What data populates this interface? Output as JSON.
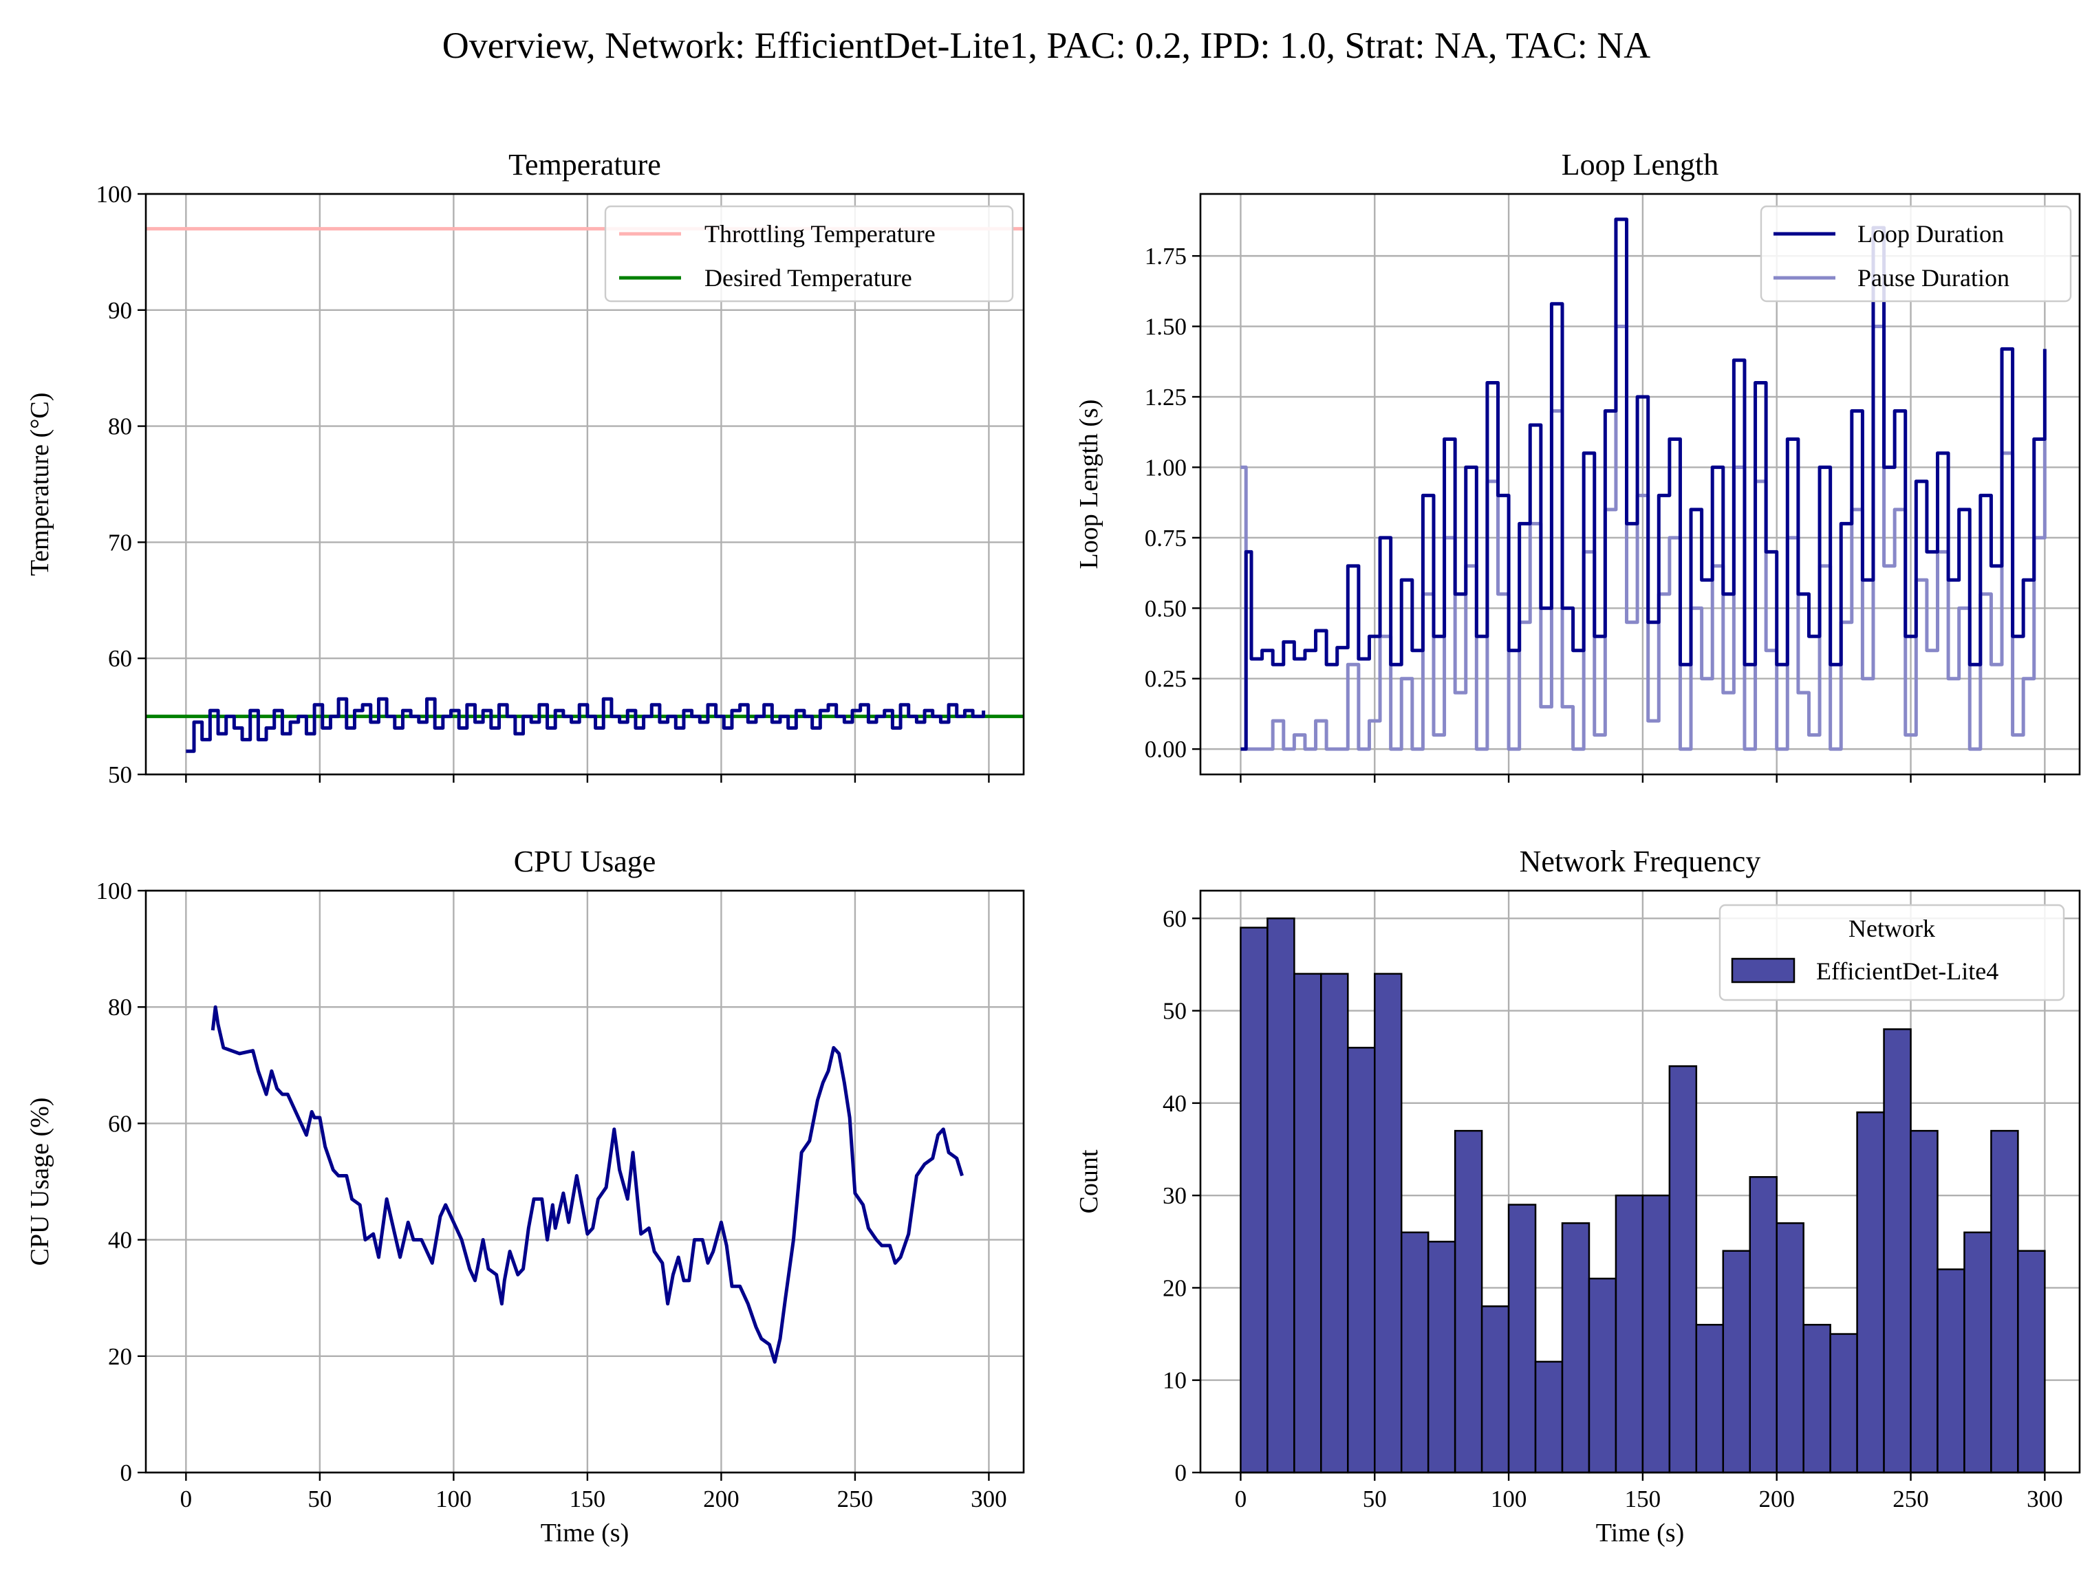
{
  "figure": {
    "suptitle": "Overview, Network: EfficientDet-Lite1, PAC: 0.2, IPD: 1.0, Strat: NA, TAC: NA"
  },
  "chart_data": [
    {
      "id": "temperature",
      "type": "line",
      "title": "Temperature",
      "xlabel": "",
      "ylabel": "Temperature (°C)",
      "xlim": [
        -15,
        313
      ],
      "ylim": [
        50,
        100
      ],
      "xticks": [
        0,
        50,
        100,
        150,
        200,
        250,
        300
      ],
      "yticks": [
        50,
        60,
        70,
        80,
        90,
        100
      ],
      "grid": true,
      "legend_position": "top-right",
      "hlines": [
        {
          "name": "Throttling Temperature",
          "y": 97,
          "color": "#ffb3b3"
        },
        {
          "name": "Desired Temperature",
          "y": 55,
          "color": "#008000"
        }
      ],
      "series": [
        {
          "color": "#00008b",
          "x": [
            0,
            3,
            6,
            9,
            12,
            15,
            18,
            21,
            24,
            27,
            30,
            33,
            36,
            39,
            42,
            45,
            48,
            51,
            54,
            57,
            60,
            63,
            66,
            69,
            72,
            75,
            78,
            81,
            84,
            87,
            90,
            93,
            96,
            99,
            102,
            105,
            108,
            111,
            114,
            117,
            120,
            123,
            126,
            129,
            132,
            135,
            138,
            141,
            144,
            147,
            150,
            153,
            156,
            159,
            162,
            165,
            168,
            171,
            174,
            177,
            180,
            183,
            186,
            189,
            192,
            195,
            198,
            201,
            204,
            207,
            210,
            213,
            216,
            219,
            222,
            225,
            228,
            231,
            234,
            237,
            240,
            243,
            246,
            249,
            252,
            255,
            258,
            261,
            264,
            267,
            270,
            273,
            276,
            279,
            282,
            285,
            288,
            291,
            294,
            298
          ],
          "y": [
            52,
            54.5,
            53,
            55.5,
            53.5,
            55,
            54,
            53,
            55.5,
            53,
            54,
            55.5,
            53.5,
            54.5,
            55,
            53.5,
            56,
            54,
            55,
            56.5,
            54,
            55.5,
            56,
            54.5,
            56.5,
            55,
            54,
            55.5,
            55,
            54.5,
            56.5,
            54,
            55,
            55.5,
            54,
            56,
            54.5,
            55.5,
            54,
            56,
            55,
            53.5,
            55,
            54.5,
            56,
            54,
            55.5,
            55,
            54.5,
            56,
            55,
            54,
            56.5,
            55,
            54.5,
            55.5,
            54,
            55,
            56,
            54.5,
            55,
            54,
            55.5,
            55,
            54.5,
            56,
            55,
            54,
            55.5,
            56,
            54.5,
            55,
            56,
            54.5,
            55,
            54,
            55.5,
            55,
            54,
            55.5,
            56,
            55,
            54.5,
            55.5,
            56,
            54.5,
            55,
            55.5,
            54,
            56,
            55,
            54.5,
            55.5,
            55,
            54.5,
            56,
            55,
            55.5,
            55,
            55.5
          ]
        }
      ]
    },
    {
      "id": "loop-length",
      "type": "line",
      "title": "Loop Length",
      "xlabel": "",
      "ylabel": "Loop Length (s)",
      "xlim": [
        -15,
        313
      ],
      "ylim": [
        -0.09,
        1.97
      ],
      "xticks": [
        0,
        50,
        100,
        150,
        200,
        250,
        300
      ],
      "yticks": [
        0.0,
        0.25,
        0.5,
        0.75,
        1.0,
        1.25,
        1.5,
        1.75
      ],
      "grid": true,
      "legend_position": "top-right",
      "series": [
        {
          "name": "Loop Duration",
          "color": "#00008b",
          "x": [
            0,
            2,
            4,
            8,
            12,
            16,
            20,
            24,
            28,
            32,
            36,
            40,
            44,
            48,
            52,
            56,
            60,
            64,
            68,
            72,
            76,
            80,
            84,
            88,
            92,
            96,
            100,
            104,
            108,
            112,
            116,
            120,
            124,
            128,
            132,
            136,
            140,
            144,
            148,
            152,
            156,
            160,
            164,
            168,
            172,
            176,
            180,
            184,
            188,
            192,
            196,
            200,
            204,
            208,
            212,
            216,
            220,
            224,
            228,
            232,
            236,
            240,
            244,
            248,
            252,
            256,
            260,
            264,
            268,
            272,
            276,
            280,
            284,
            288,
            292,
            296,
            300
          ],
          "y": [
            0,
            0.7,
            0.32,
            0.35,
            0.3,
            0.38,
            0.32,
            0.35,
            0.42,
            0.3,
            0.36,
            0.65,
            0.32,
            0.4,
            0.75,
            0.3,
            0.6,
            0.35,
            0.9,
            0.4,
            1.1,
            0.55,
            1.0,
            0.4,
            1.3,
            0.9,
            0.35,
            0.8,
            1.15,
            0.5,
            1.58,
            0.5,
            0.35,
            1.05,
            0.4,
            1.2,
            1.88,
            0.8,
            1.25,
            0.45,
            0.9,
            1.1,
            0.3,
            0.85,
            0.6,
            1.0,
            0.55,
            1.38,
            0.3,
            1.3,
            0.7,
            0.3,
            1.1,
            0.55,
            0.4,
            1.0,
            0.3,
            0.8,
            1.2,
            0.6,
            1.85,
            1.0,
            1.2,
            0.4,
            0.95,
            0.7,
            1.05,
            0.6,
            0.85,
            0.3,
            0.9,
            0.65,
            1.42,
            0.4,
            0.6,
            1.1,
            1.42
          ]
        },
        {
          "name": "Pause Duration",
          "color": "#8888c8",
          "x": [
            0,
            2,
            4,
            8,
            12,
            16,
            20,
            24,
            28,
            32,
            36,
            40,
            44,
            48,
            52,
            56,
            60,
            64,
            68,
            72,
            76,
            80,
            84,
            88,
            92,
            96,
            100,
            104,
            108,
            112,
            116,
            120,
            124,
            128,
            132,
            136,
            140,
            144,
            148,
            152,
            156,
            160,
            164,
            168,
            172,
            176,
            180,
            184,
            188,
            192,
            196,
            200,
            204,
            208,
            212,
            216,
            220,
            224,
            228,
            232,
            236,
            240,
            244,
            248,
            252,
            256,
            260,
            264,
            268,
            272,
            276,
            280,
            284,
            288,
            292,
            296,
            300
          ],
          "y": [
            1.0,
            0,
            0,
            0,
            0.1,
            0,
            0.05,
            0,
            0.1,
            0,
            0,
            0.3,
            0,
            0.1,
            0.4,
            0,
            0.25,
            0,
            0.55,
            0.05,
            0.75,
            0.2,
            0.65,
            0,
            0.95,
            0.55,
            0,
            0.45,
            0.8,
            0.15,
            1.2,
            0.15,
            0,
            0.7,
            0.05,
            0.85,
            1.5,
            0.45,
            0.9,
            0.1,
            0.55,
            0.75,
            0,
            0.5,
            0.25,
            0.65,
            0.2,
            1.0,
            0,
            0.95,
            0.35,
            0,
            0.75,
            0.2,
            0.05,
            0.65,
            0,
            0.45,
            0.85,
            0.25,
            1.5,
            0.65,
            0.85,
            0.05,
            0.6,
            0.35,
            0.7,
            0.25,
            0.5,
            0,
            0.55,
            0.3,
            1.05,
            0.05,
            0.25,
            0.75,
            1.1
          ]
        }
      ]
    },
    {
      "id": "cpu-usage",
      "type": "line",
      "title": "CPU Usage",
      "xlabel": "Time (s)",
      "ylabel": "CPU Usage (%)",
      "xlim": [
        -15,
        313
      ],
      "ylim": [
        0,
        100
      ],
      "xticks": [
        0,
        50,
        100,
        150,
        200,
        250,
        300
      ],
      "yticks": [
        0,
        20,
        40,
        60,
        80,
        100
      ],
      "grid": true,
      "series": [
        {
          "color": "#00008b",
          "x": [
            10,
            11,
            12,
            14,
            20,
            25,
            27,
            30,
            32,
            34,
            36,
            38,
            42,
            45,
            47,
            48,
            50,
            52,
            55,
            57,
            60,
            62,
            65,
            67,
            70,
            72,
            75,
            78,
            80,
            83,
            85,
            88,
            90,
            92,
            95,
            97,
            100,
            103,
            106,
            108,
            111,
            113,
            116,
            118,
            119,
            121,
            124,
            126,
            128,
            130,
            133,
            135,
            137,
            138,
            141,
            143,
            146,
            148,
            150,
            152,
            154,
            157,
            160,
            162,
            165,
            167,
            170,
            173,
            175,
            178,
            180,
            182,
            184,
            186,
            188,
            190,
            193,
            195,
            197,
            200,
            202,
            204,
            207,
            210,
            213,
            215,
            218,
            220,
            222,
            224,
            227,
            230,
            233,
            236,
            238,
            240,
            242,
            244,
            246,
            248,
            250,
            253,
            255,
            258,
            260,
            263,
            265,
            267,
            270,
            273,
            276,
            279,
            281,
            283,
            285,
            288,
            290
          ],
          "y": [
            76,
            80,
            77,
            73,
            72,
            72.5,
            69,
            65,
            69,
            66,
            65,
            65,
            61,
            58,
            62,
            61,
            61,
            56,
            52,
            51,
            51,
            47,
            46,
            40,
            41,
            37,
            47,
            41,
            37,
            43,
            40,
            40,
            38,
            36,
            44,
            46,
            43,
            40,
            35,
            33,
            40,
            35,
            34,
            29,
            33,
            38,
            34,
            35,
            42,
            47,
            47,
            40,
            46,
            42,
            48,
            43,
            51,
            46,
            41,
            42,
            47,
            49,
            59,
            52,
            47,
            55,
            41,
            42,
            38,
            36,
            29,
            34,
            37,
            33,
            33,
            40,
            40,
            36,
            38,
            43,
            39,
            32,
            32,
            29,
            25,
            23,
            22,
            19,
            23,
            30,
            40,
            55,
            57,
            64,
            67,
            69,
            73,
            72,
            67,
            61,
            48,
            46,
            42,
            40,
            39,
            39,
            36,
            37,
            41,
            51,
            53,
            54,
            58,
            59,
            55,
            54,
            51
          ]
        }
      ]
    },
    {
      "id": "network-frequency",
      "type": "bar",
      "title": "Network Frequency",
      "xlabel": "Time (s)",
      "ylabel": "Count",
      "xlim": [
        -15,
        313
      ],
      "ylim": [
        0,
        63
      ],
      "xticks": [
        0,
        50,
        100,
        150,
        200,
        250,
        300
      ],
      "yticks": [
        0,
        10,
        20,
        30,
        40,
        50,
        60
      ],
      "grid": true,
      "legend_position": "top-right",
      "legend_title": "Network",
      "bin_start": 0,
      "bin_width": 10,
      "series": [
        {
          "name": "EfficientDet-Lite4",
          "color": "#4b4ba3",
          "values": [
            59,
            60,
            54,
            54,
            46,
            54,
            26,
            25,
            37,
            18,
            29,
            12,
            27,
            21,
            30,
            30,
            44,
            16,
            24,
            32,
            27,
            16,
            15,
            39,
            48,
            37,
            22,
            26,
            37,
            24
          ]
        }
      ]
    }
  ]
}
